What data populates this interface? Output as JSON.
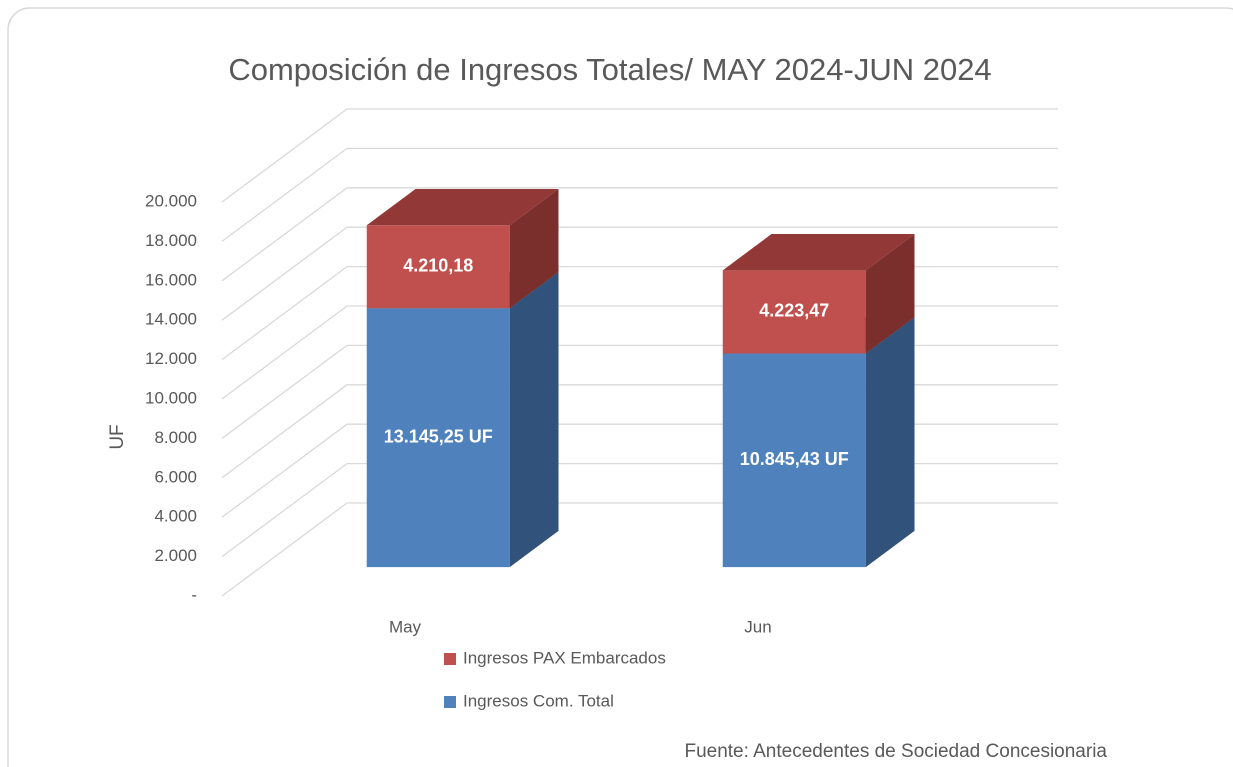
{
  "chart_data": {
    "type": "bar3d_stacked",
    "title": "Composición de Ingresos Totales/ MAY 2024-JUN 2024",
    "y_label": "UF",
    "annotation": "Fuente: Antecedentes de Sociedad Concesionaria",
    "categories": [
      "May",
      "Jun"
    ],
    "series": [
      {
        "name": "Ingresos Com. Total",
        "color": "#4f81bd",
        "side_color": "#31527a",
        "top_color": "#3e6796",
        "values": [
          13145.25,
          10845.43
        ],
        "value_labels": [
          "13.145,25 UF",
          "10.845,43 UF"
        ]
      },
      {
        "name": "Ingresos PAX Embarcados",
        "color": "#c0504d",
        "side_color": "#7b2f2d",
        "top_color": "#923836",
        "values": [
          4210.18,
          4223.47
        ],
        "value_labels": [
          "4.210,18",
          "4.223,47"
        ]
      }
    ],
    "ylim": [
      0,
      20000
    ],
    "yticks": [
      {
        "value": 0,
        "label": "-"
      },
      {
        "value": 2000,
        "label": "2.000"
      },
      {
        "value": 4000,
        "label": "4.000"
      },
      {
        "value": 6000,
        "label": "6.000"
      },
      {
        "value": 8000,
        "label": "8.000"
      },
      {
        "value": 10000,
        "label": "10.000"
      },
      {
        "value": 12000,
        "label": "12.000"
      },
      {
        "value": 14000,
        "label": "14.000"
      },
      {
        "value": 16000,
        "label": "16.000"
      },
      {
        "value": 18000,
        "label": "18.000"
      },
      {
        "value": 20000,
        "label": "20.000"
      }
    ],
    "grid": true
  }
}
